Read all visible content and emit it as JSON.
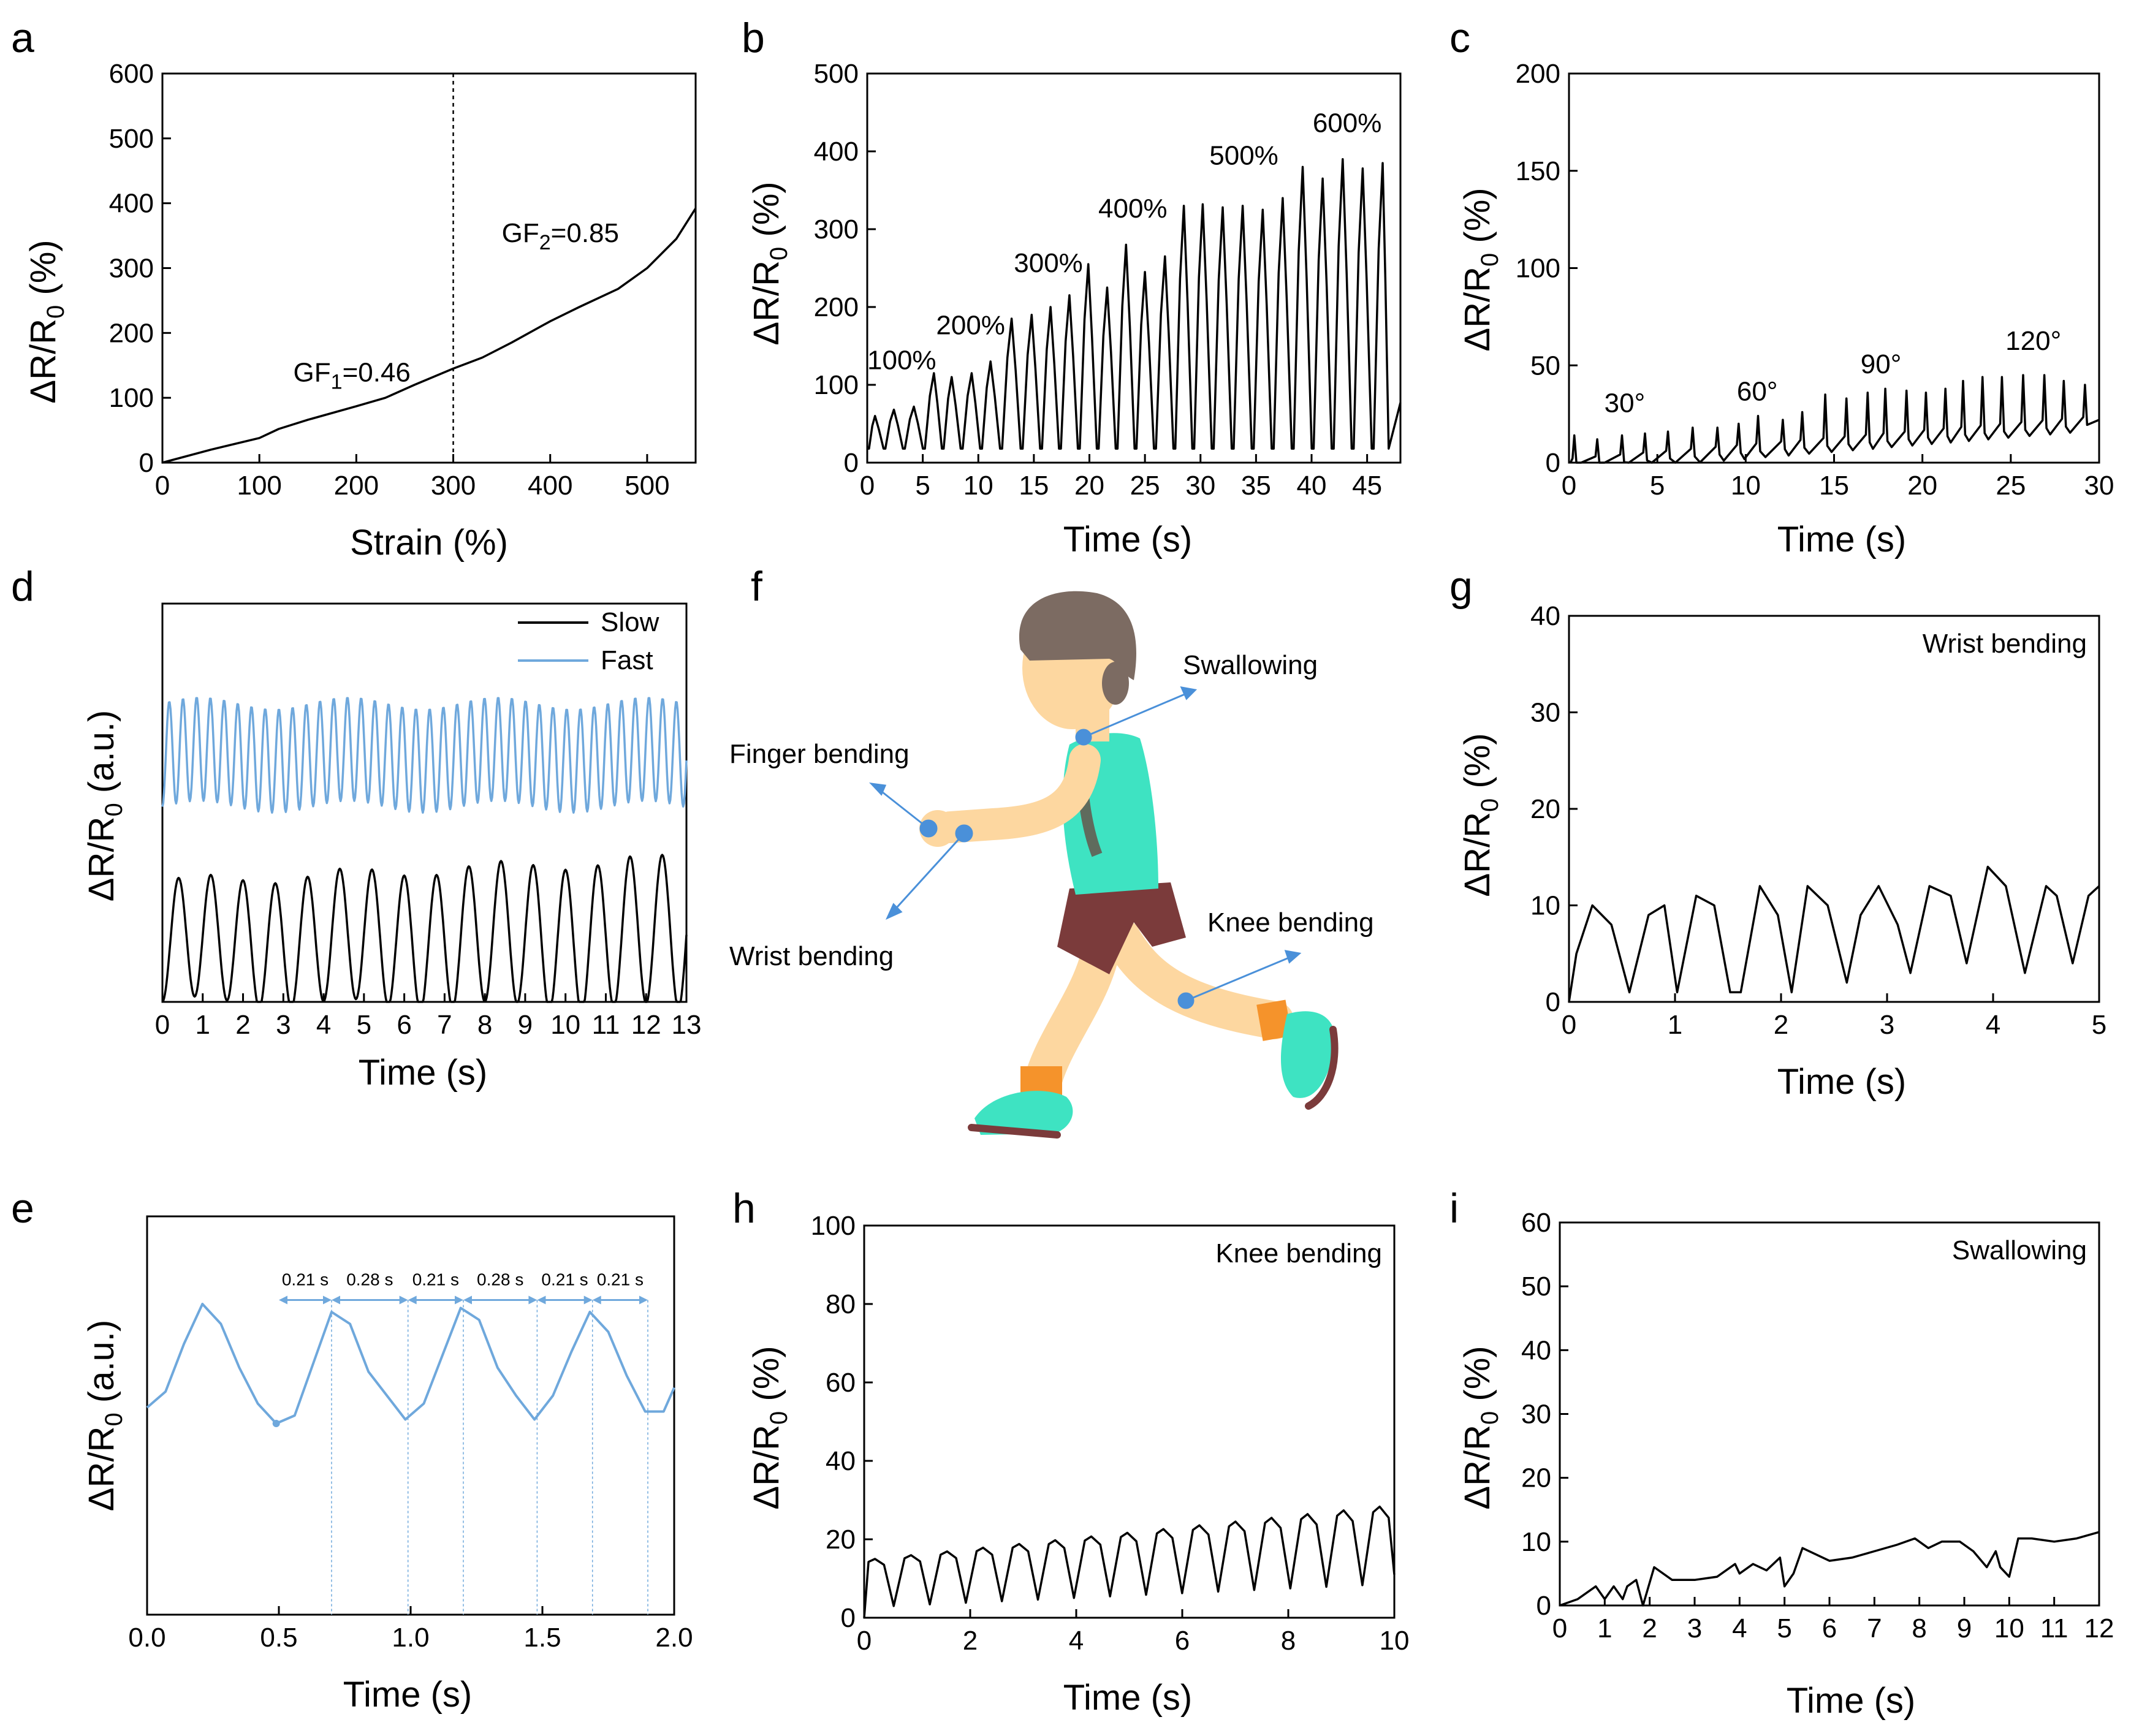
{
  "figure_label": "Sensor performance figure, panels a–i",
  "chart_data": [
    {
      "id": "a",
      "type": "line",
      "panel_letter": "a",
      "xlabel": "Strain (%)",
      "ylabel": "ΔR/R0 (%)",
      "xlim": [
        0,
        550
      ],
      "ylim": [
        0,
        600
      ],
      "xticks": [
        0,
        100,
        200,
        300,
        400,
        500
      ],
      "yticks": [
        0,
        100,
        200,
        300,
        400,
        500,
        600
      ],
      "vline": 300,
      "annotations": [
        {
          "text": "GF",
          "sub": "1",
          "after": "=0.46",
          "x": 135,
          "y": 125
        },
        {
          "text": "GF",
          "sub": "2",
          "after": "=0.85",
          "x": 350,
          "y": 340
        }
      ],
      "series": [
        {
          "name": "strain",
          "color": "#000000",
          "x": [
            0,
            50,
            100,
            120,
            150,
            200,
            230,
            260,
            300,
            330,
            360,
            400,
            430,
            470,
            500,
            530,
            550
          ],
          "y": [
            0,
            20,
            38,
            52,
            66,
            87,
            100,
            120,
            145,
            162,
            185,
            218,
            240,
            268,
            300,
            345,
            392
          ]
        }
      ]
    },
    {
      "id": "b",
      "type": "line",
      "panel_letter": "b",
      "xlabel": "Time (s)",
      "ylabel": "ΔR/R0 (%)",
      "xlim": [
        0,
        48
      ],
      "ylim": [
        0,
        500
      ],
      "xticks": [
        0,
        5,
        10,
        15,
        20,
        25,
        30,
        35,
        40,
        45
      ],
      "yticks": [
        0,
        100,
        200,
        300,
        400,
        500
      ],
      "annotations": [
        {
          "text": "100%",
          "x": 0.0,
          "y": 120
        },
        {
          "text": "200%",
          "x": 6.2,
          "y": 165
        },
        {
          "text": "300%",
          "x": 13.2,
          "y": 245
        },
        {
          "text": "400%",
          "x": 20.8,
          "y": 315
        },
        {
          "text": "500%",
          "x": 30.8,
          "y": 383
        },
        {
          "text": "600%",
          "x": 40.1,
          "y": 425
        }
      ],
      "series": [
        {
          "name": "response",
          "color": "#000000",
          "waveform": "cyclic",
          "baseline": 18,
          "peak_t": [
            0.7,
            2.4,
            4.2,
            6.0,
            7.6,
            9.4,
            11.1,
            13.0,
            14.8,
            16.5,
            18.2,
            19.9,
            21.6,
            23.3,
            25.0,
            26.8,
            28.5,
            30.2,
            32.0,
            33.8,
            35.6,
            37.4,
            39.2,
            41.0,
            42.8,
            44.6,
            46.4
          ],
          "peak_y": [
            60,
            68,
            72,
            115,
            110,
            115,
            130,
            185,
            190,
            200,
            215,
            255,
            225,
            280,
            245,
            265,
            330,
            332,
            328,
            330,
            325,
            340,
            380,
            365,
            390,
            378,
            385
          ]
        }
      ]
    },
    {
      "id": "c",
      "type": "line",
      "panel_letter": "c",
      "xlabel": "Time (s)",
      "ylabel": "ΔR/R0 (%)",
      "xlim": [
        0,
        30
      ],
      "ylim": [
        0,
        200
      ],
      "xticks": [
        0,
        5,
        10,
        15,
        20,
        25,
        30
      ],
      "yticks": [
        0,
        50,
        100,
        150,
        200
      ],
      "annotations": [
        {
          "text": "30°",
          "x": 2.0,
          "y": 26
        },
        {
          "text": "60°",
          "x": 9.5,
          "y": 32
        },
        {
          "text": "90°",
          "x": 16.5,
          "y": 46
        },
        {
          "text": "120°",
          "x": 24.7,
          "y": 58
        }
      ],
      "series": [
        {
          "name": "response",
          "color": "#000000",
          "waveform": "spiky",
          "ramp": [
            0,
            22
          ],
          "peak_t": [
            0.3,
            1.6,
            3.0,
            4.3,
            5.6,
            7.0,
            8.4,
            9.6,
            10.7,
            12.1,
            13.2,
            14.5,
            15.7,
            16.9,
            17.9,
            19.1,
            20.2,
            21.3,
            22.3,
            23.4,
            24.5,
            25.7,
            26.9,
            28.0,
            29.2
          ],
          "peak_y": [
            14,
            12,
            14,
            15,
            16,
            18,
            18,
            20,
            24,
            22,
            26,
            35,
            33,
            36,
            38,
            37,
            36,
            38,
            42,
            44,
            44,
            45,
            45,
            42,
            40
          ]
        }
      ]
    },
    {
      "id": "d",
      "type": "line",
      "panel_letter": "d",
      "xlabel": "Time (s)",
      "ylabel": "ΔR/R0 (a.u.)",
      "xlim": [
        0,
        13
      ],
      "ylim": [
        0,
        100
      ],
      "xticks": [
        0,
        1,
        2,
        3,
        4,
        5,
        6,
        7,
        8,
        9,
        10,
        11,
        12,
        13
      ],
      "yticks": [],
      "legend": {
        "position": "top-right",
        "entries": [
          {
            "label": "Slow",
            "color": "#000000"
          },
          {
            "label": "Fast",
            "color": "#6fa8dc"
          }
        ]
      },
      "series": [
        {
          "name": "Slow",
          "color": "#000000",
          "waveform": "sine",
          "period": 0.8,
          "center": 15,
          "amplitude": 15,
          "amp_growth": 4,
          "center_growth": 2
        },
        {
          "name": "Fast",
          "color": "#6fa8dc",
          "waveform": "sine",
          "period": 0.34,
          "center": 62,
          "amplitude": 13,
          "amp_growth": 0,
          "center_growth": 0
        }
      ]
    },
    {
      "id": "e",
      "type": "line",
      "panel_letter": "e",
      "xlabel": "Time (s)",
      "ylabel": "ΔR/R0 (a.u.)",
      "xlim": [
        0,
        2
      ],
      "ylim": [
        0,
        100
      ],
      "xticks": [
        "0.0",
        "0.5",
        "1.0",
        "1.5",
        "2.0"
      ],
      "yticks": [],
      "interval_labels": [
        "0.21 s",
        "0.28 s",
        "0.21 s",
        "0.28 s",
        "0.21 s",
        "0.21 s"
      ],
      "interval_marks": [
        0.5,
        0.7,
        0.99,
        1.2,
        1.48,
        1.69,
        1.9
      ],
      "series": [
        {
          "name": "response",
          "color": "#6fa8dc",
          "x": [
            0.0,
            0.07,
            0.14,
            0.21,
            0.28,
            0.35,
            0.42,
            0.49,
            0.56,
            0.63,
            0.7,
            0.77,
            0.84,
            0.91,
            0.98,
            1.05,
            1.12,
            1.19,
            1.26,
            1.33,
            1.4,
            1.47,
            1.54,
            1.61,
            1.68,
            1.75,
            1.82,
            1.89,
            1.96,
            2.0
          ],
          "y": [
            52,
            56,
            68,
            78,
            73,
            62,
            53,
            48,
            50,
            63,
            76,
            73,
            61,
            55,
            49,
            53,
            65,
            77,
            74,
            62,
            55,
            49,
            55,
            66,
            76,
            71,
            60,
            51,
            51,
            57
          ]
        }
      ]
    },
    {
      "id": "g",
      "type": "line",
      "panel_letter": "g",
      "xlabel": "Time (s)",
      "ylabel": "ΔR/R0 (%)",
      "xlim": [
        0,
        5
      ],
      "ylim": [
        0,
        40
      ],
      "xticks": [
        0,
        1,
        2,
        3,
        4,
        5
      ],
      "yticks": [
        0,
        10,
        20,
        30,
        40
      ],
      "inset_label": "Wrist bending",
      "series": [
        {
          "name": "response",
          "color": "#000000",
          "x": [
            0.0,
            0.07,
            0.22,
            0.4,
            0.57,
            0.75,
            0.9,
            1.02,
            1.2,
            1.37,
            1.52,
            1.62,
            1.8,
            1.97,
            2.1,
            2.25,
            2.44,
            2.62,
            2.75,
            2.92,
            3.1,
            3.22,
            3.4,
            3.6,
            3.75,
            3.95,
            4.12,
            4.3,
            4.5,
            4.6,
            4.75,
            4.9,
            5.0
          ],
          "y": [
            0,
            5,
            10,
            8,
            1,
            9,
            10,
            1,
            11,
            10,
            1,
            1,
            12,
            9,
            1,
            12,
            10,
            2,
            9,
            12,
            8,
            3,
            12,
            11,
            4,
            14,
            12,
            3,
            12,
            11,
            4,
            11,
            12
          ]
        }
      ]
    },
    {
      "id": "h",
      "type": "line",
      "panel_letter": "h",
      "xlabel": "Time (s)",
      "ylabel": "ΔR/R0 (%)",
      "xlim": [
        0,
        10
      ],
      "ylim": [
        0,
        100
      ],
      "xticks": [
        0,
        2,
        4,
        6,
        8,
        10
      ],
      "yticks": [
        0,
        20,
        40,
        60,
        80,
        100
      ],
      "inset_label": "Knee bending",
      "series": [
        {
          "name": "response",
          "color": "#000000",
          "waveform": "cyclic",
          "baseline": 3,
          "period": 0.68,
          "start_peak": 15,
          "end_peak": 29,
          "trough_growth": 6
        }
      ]
    },
    {
      "id": "i",
      "type": "line",
      "panel_letter": "i",
      "xlabel": "Time (s)",
      "ylabel": "ΔR/R0 (%)",
      "xlim": [
        0,
        12
      ],
      "ylim": [
        0,
        60
      ],
      "xticks": [
        0,
        1,
        2,
        3,
        4,
        5,
        6,
        7,
        8,
        9,
        10,
        11,
        12
      ],
      "yticks": [
        0,
        10,
        20,
        30,
        40,
        50,
        60
      ],
      "inset_label": "Swallowing",
      "series": [
        {
          "name": "response",
          "color": "#000000",
          "x": [
            0.0,
            0.4,
            0.8,
            1.0,
            1.2,
            1.4,
            1.5,
            1.7,
            1.85,
            2.1,
            2.5,
            3.0,
            3.5,
            3.9,
            4.0,
            4.3,
            4.6,
            4.9,
            5.0,
            5.2,
            5.4,
            5.7,
            6.0,
            6.5,
            7.0,
            7.5,
            7.9,
            8.2,
            8.5,
            8.9,
            9.2,
            9.5,
            9.7,
            9.8,
            10.0,
            10.2,
            10.5,
            11.0,
            11.5,
            12.0
          ],
          "y": [
            0,
            1,
            3,
            1,
            3,
            1,
            3,
            4,
            0,
            6,
            4,
            4,
            4.5,
            6.5,
            5,
            6.5,
            5.5,
            7.5,
            3,
            5,
            9,
            8,
            7,
            7.5,
            8.5,
            9.5,
            10.5,
            9,
            10,
            10,
            8.5,
            6,
            8.5,
            6,
            4.5,
            10.5,
            10.5,
            10,
            10.5,
            11.5
          ]
        }
      ]
    }
  ],
  "illustration_f": {
    "panel_letter": "f",
    "labels": {
      "swallowing": "Swallowing",
      "finger": "Finger bending",
      "wrist": "Wrist bending",
      "knee": "Knee bending"
    },
    "colors": {
      "skin": "#fdd7a0",
      "hair": "#7c6b62",
      "shirt": "#3ee3c2",
      "shorts": "#7b3b3b",
      "shoe": "#3ee3c2",
      "sock": "#f5932b",
      "sole": "#7b3b3b",
      "marker": "#4a90d9"
    }
  },
  "colors": {
    "axis": "#000000",
    "blue": "#6fa8dc"
  }
}
